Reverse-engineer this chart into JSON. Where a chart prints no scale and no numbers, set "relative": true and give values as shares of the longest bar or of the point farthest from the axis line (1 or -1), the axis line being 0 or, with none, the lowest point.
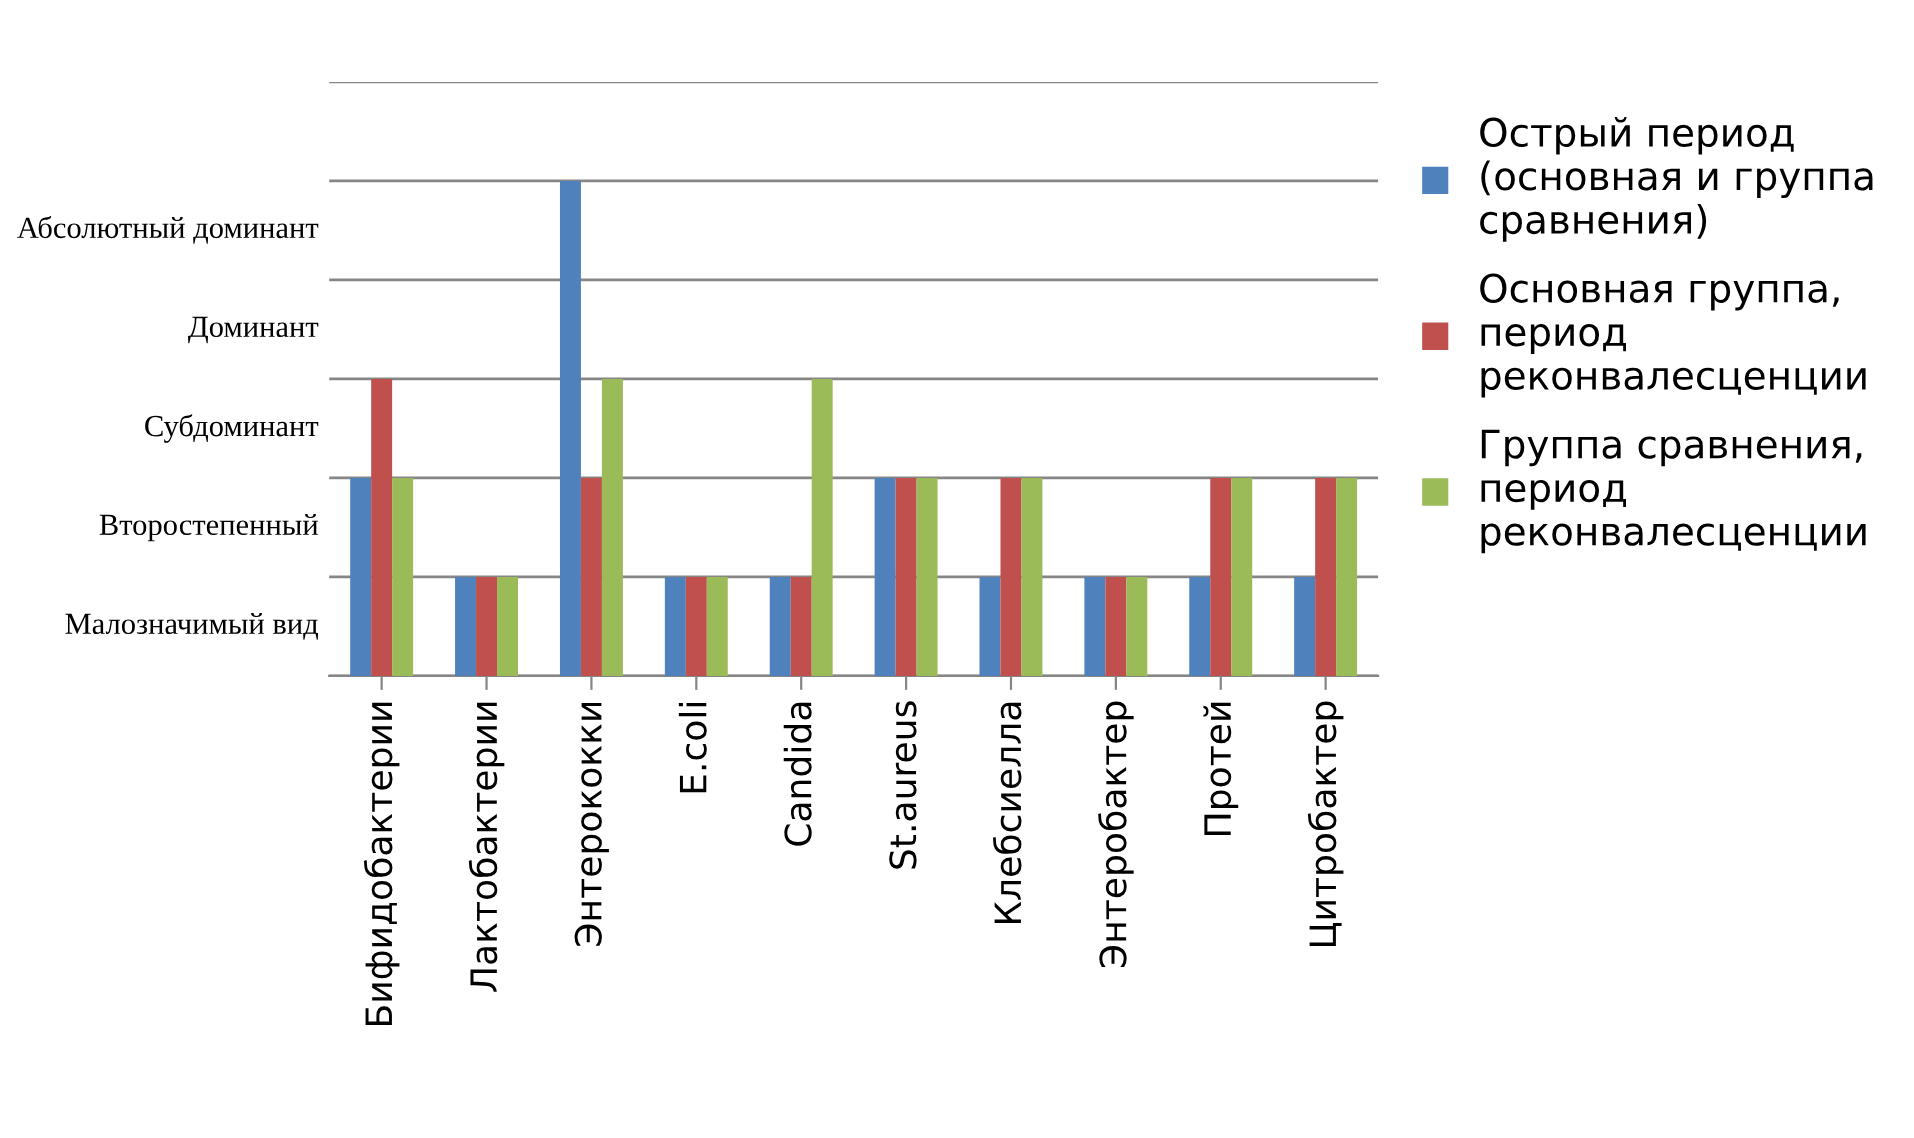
{
  "chart_data": {
    "type": "bar",
    "categories": [
      "Бифидобактерии",
      "Лактобактерии",
      "Энтерококки",
      "E.coli",
      "Candida",
      "St.aureus",
      "Клебсиелла",
      "Энтеробактер",
      "Протей",
      "Цитробактер"
    ],
    "series": [
      {
        "name": "Острый период\n(основная и группа\nсравнения)",
        "color": "#4f81bd",
        "values": [
          0.4,
          0.2,
          1,
          0.2,
          0.2,
          0.4,
          0.2,
          0.2,
          0.2,
          0.2
        ]
      },
      {
        "name": "Основная группа,\nпериод\nреконвалесценции",
        "color": "#c0504d",
        "values": [
          0.6,
          0.2,
          0.4,
          0.2,
          0.2,
          0.4,
          0.4,
          0.2,
          0.4,
          0.4
        ]
      },
      {
        "name": "Группа сравнения,\nпериод\nреконвалесценции",
        "color": "#9bbb59",
        "values": [
          0.4,
          0.2,
          0.6,
          0.2,
          0.6,
          0.4,
          0.4,
          0.2,
          0.4,
          0.4
        ]
      }
    ],
    "relative": true,
    "annotations": [
      "Малозначимый вид",
      "Второстепенный",
      "Субдоминант",
      "Доминант",
      "Абсолютный доминант"
    ],
    "grid": "y",
    "legend": "right"
  }
}
